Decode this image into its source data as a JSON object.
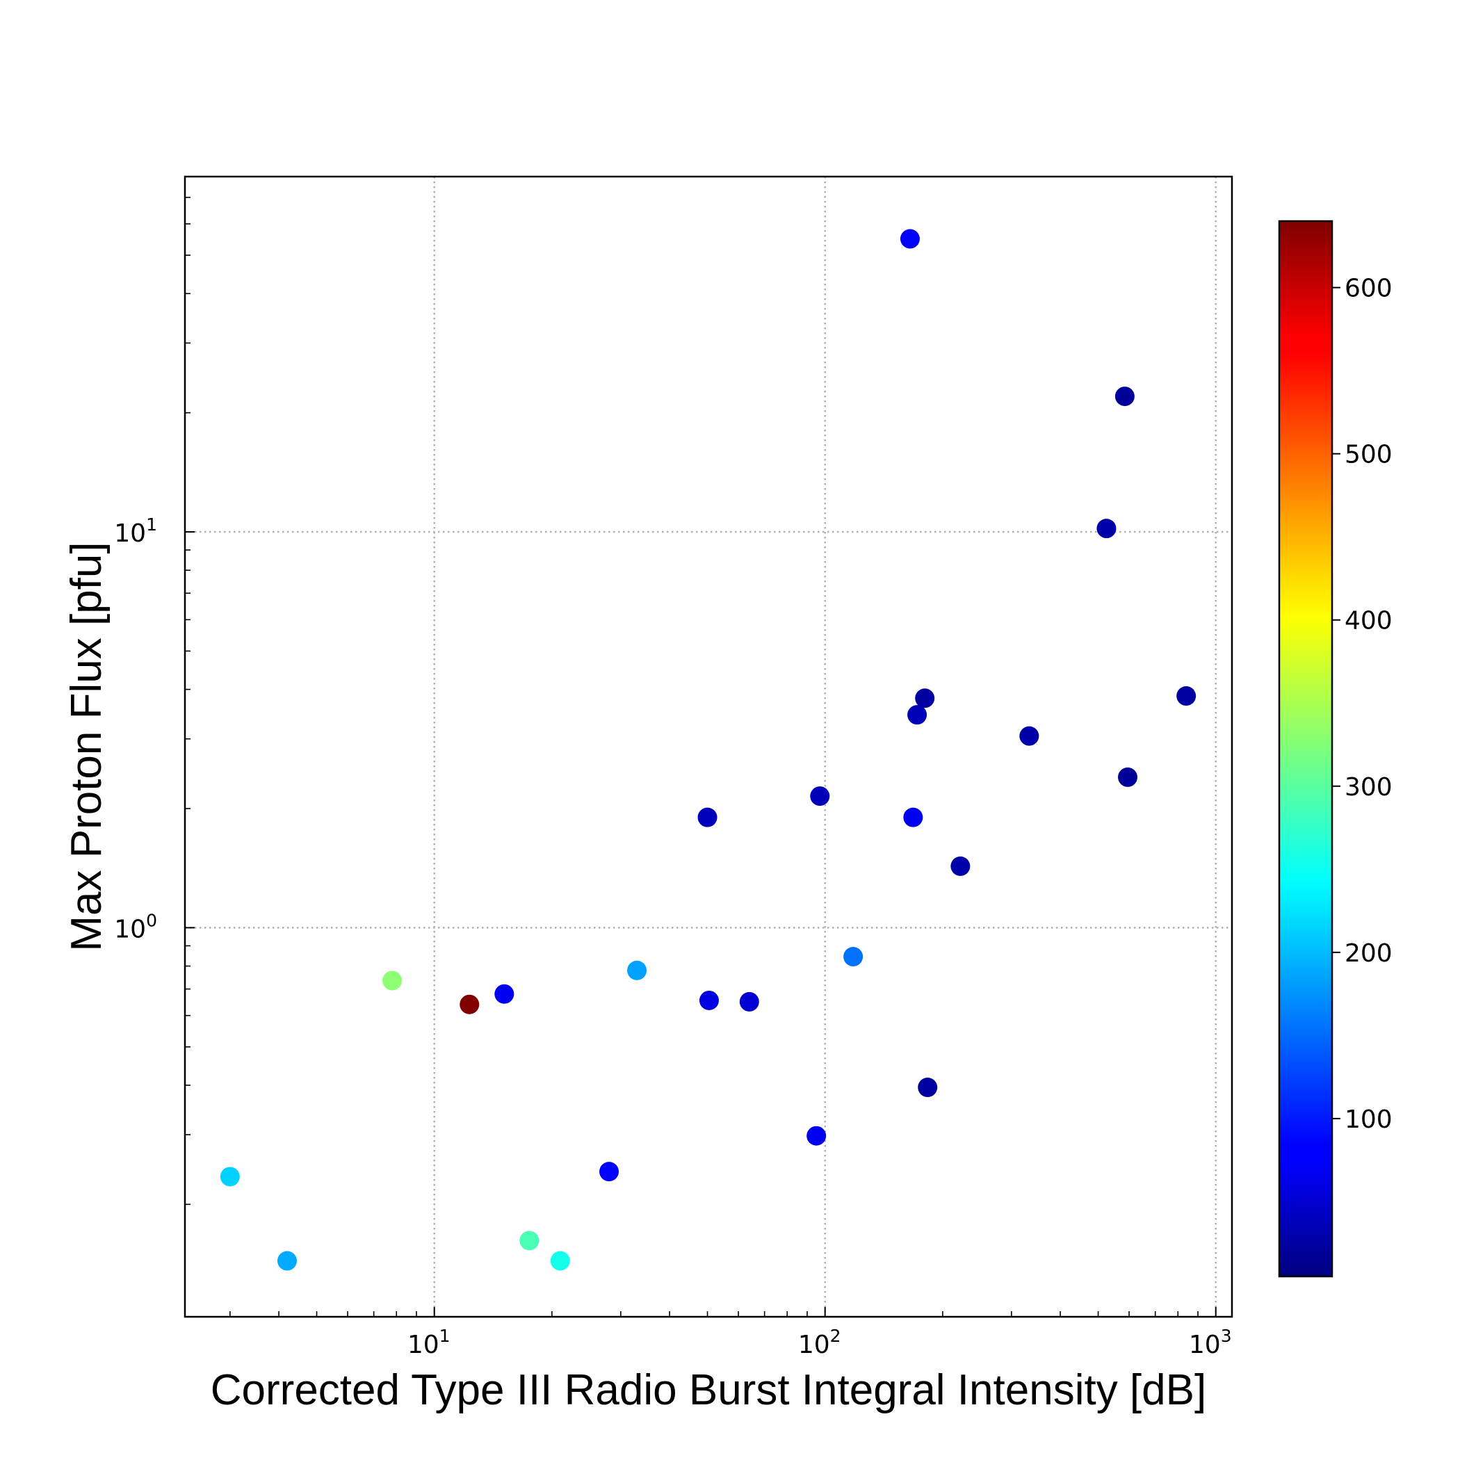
{
  "chart_data": {
    "type": "scatter",
    "title": "",
    "xlabel": "Corrected Type III Radio Burst Integral Intensity [dB]",
    "ylabel": "Max Proton Flux [pfu]",
    "xscale": "log",
    "yscale": "log",
    "xlim": [
      2.3,
      1100
    ],
    "ylim": [
      0.104,
      79
    ],
    "grid": true,
    "x_ticks": [
      {
        "value": 10,
        "base": "10",
        "exp": "1"
      },
      {
        "value": 100,
        "base": "10",
        "exp": "2"
      },
      {
        "value": 1000,
        "base": "10",
        "exp": "3"
      }
    ],
    "y_ticks": [
      {
        "value": 1,
        "base": "10",
        "exp": "0"
      },
      {
        "value": 10,
        "base": "10",
        "exp": "1"
      }
    ],
    "colorbar": {
      "colormap": "jet",
      "range": [
        5,
        640
      ],
      "ticks": [
        "100",
        "200",
        "300",
        "400",
        "500",
        "600"
      ],
      "tick_values": [
        100,
        200,
        300,
        400,
        500,
        600
      ]
    },
    "points": [
      {
        "x": 3.0,
        "y": 0.235,
        "c": 215
      },
      {
        "x": 4.2,
        "y": 0.144,
        "c": 190
      },
      {
        "x": 7.8,
        "y": 0.735,
        "c": 330
      },
      {
        "x": 12.3,
        "y": 0.64,
        "c": 640
      },
      {
        "x": 15.1,
        "y": 0.68,
        "c": 75
      },
      {
        "x": 17.5,
        "y": 0.162,
        "c": 290
      },
      {
        "x": 21.0,
        "y": 0.144,
        "c": 255
      },
      {
        "x": 28.0,
        "y": 0.242,
        "c": 85
      },
      {
        "x": 33.0,
        "y": 0.78,
        "c": 185
      },
      {
        "x": 50.0,
        "y": 1.9,
        "c": 40
      },
      {
        "x": 50.5,
        "y": 0.655,
        "c": 65
      },
      {
        "x": 64.0,
        "y": 0.65,
        "c": 55
      },
      {
        "x": 95.0,
        "y": 0.298,
        "c": 75
      },
      {
        "x": 97.0,
        "y": 2.15,
        "c": 40
      },
      {
        "x": 118.0,
        "y": 0.845,
        "c": 155
      },
      {
        "x": 165.0,
        "y": 55.0,
        "c": 85
      },
      {
        "x": 168.0,
        "y": 1.9,
        "c": 75
      },
      {
        "x": 172.0,
        "y": 3.45,
        "c": 40
      },
      {
        "x": 180.0,
        "y": 3.8,
        "c": 25
      },
      {
        "x": 183.0,
        "y": 0.395,
        "c": 25
      },
      {
        "x": 222.0,
        "y": 1.43,
        "c": 30
      },
      {
        "x": 333.0,
        "y": 3.05,
        "c": 30
      },
      {
        "x": 525.0,
        "y": 10.2,
        "c": 30
      },
      {
        "x": 585.0,
        "y": 22.0,
        "c": 20
      },
      {
        "x": 595.0,
        "y": 2.4,
        "c": 20
      },
      {
        "x": 840.0,
        "y": 3.85,
        "c": 25
      }
    ]
  }
}
